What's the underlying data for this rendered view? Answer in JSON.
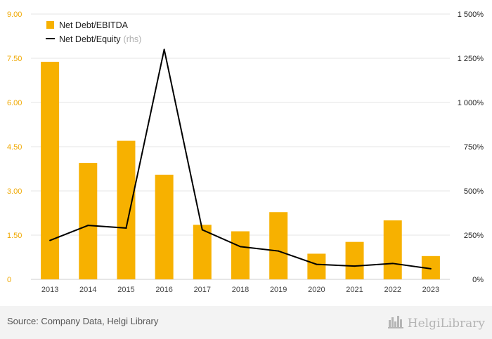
{
  "chart_data": {
    "type": "bar+line",
    "categories": [
      "2013",
      "2014",
      "2015",
      "2016",
      "2017",
      "2018",
      "2019",
      "2020",
      "2021",
      "2022",
      "2023"
    ],
    "series": [
      {
        "name": "Net Debt/EBITDA",
        "type": "bar",
        "axis": "left",
        "values": [
          7.38,
          3.95,
          4.7,
          3.55,
          1.85,
          1.63,
          2.28,
          0.87,
          1.27,
          2.0,
          0.79
        ]
      },
      {
        "name": "Net Debt/Equity",
        "name_suffix": "(rhs)",
        "type": "line",
        "axis": "right",
        "values": [
          220,
          305,
          290,
          1300,
          280,
          185,
          160,
          85,
          75,
          90,
          60
        ]
      }
    ],
    "left_axis": {
      "ticks": [
        "0",
        "1.50",
        "3.00",
        "4.50",
        "6.00",
        "7.50",
        "9.00"
      ],
      "tick_values": [
        0,
        1.5,
        3,
        4.5,
        6,
        7.5,
        9
      ],
      "range": [
        0,
        9
      ]
    },
    "right_axis": {
      "ticks": [
        "0%",
        "250%",
        "500%",
        "750%",
        "1 000%",
        "1 250%",
        "1 500%"
      ],
      "tick_values": [
        0,
        250,
        500,
        750,
        1000,
        1250,
        1500
      ],
      "range": [
        0,
        1500
      ]
    },
    "grid": true,
    "legend_position": "top-left"
  },
  "colors": {
    "bar": "#f7b100",
    "line": "#000000",
    "left_tick": "#f0a800",
    "right_tick": "#222222",
    "grid": "#e6e6e6",
    "rhs_suffix": "#b0b0b0"
  },
  "footer": {
    "source": "Source: Company Data, Helgi Library",
    "brand": "HelgiLibrary",
    "brand_icon": "city-skyline-icon"
  }
}
